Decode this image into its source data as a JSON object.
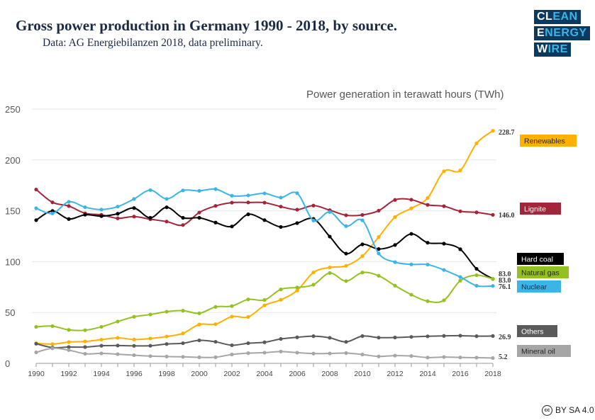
{
  "header": {
    "title": "Gross power production in Germany 1990 - 2018, by source.",
    "subtitle": "Data: AG Energiebilanzen 2018, data preliminary."
  },
  "logo": {
    "line1a": "CL",
    "line1b": "EAN",
    "line2a": "E",
    "line2b": "NERGY",
    "line3a": "W",
    "line3b": "IRE"
  },
  "license": {
    "icon": "cc",
    "text": "BY SA 4.0"
  },
  "chart_data": {
    "type": "line",
    "title": "Gross power production in Germany 1990 - 2018, by source.",
    "ylabel": "Power generation in terawatt hours (TWh)",
    "xlabel": "",
    "ylim": [
      0,
      250
    ],
    "yticks": [
      0,
      50,
      100,
      150,
      200,
      250
    ],
    "xticks": [
      1990,
      1992,
      1994,
      1996,
      1998,
      2000,
      2002,
      2004,
      2006,
      2008,
      2010,
      2012,
      2014,
      2016,
      2018
    ],
    "grid": true,
    "legend": "right",
    "x": [
      1990,
      1991,
      1992,
      1993,
      1994,
      1995,
      1996,
      1997,
      1998,
      1999,
      2000,
      2001,
      2002,
      2003,
      2004,
      2005,
      2006,
      2007,
      2008,
      2009,
      2010,
      2011,
      2012,
      2013,
      2014,
      2015,
      2016,
      2017,
      2018
    ],
    "series": [
      {
        "name": "Renewables",
        "color": "#FFB000",
        "text_color": "#222",
        "end_label": "228.7",
        "values": [
          19.7,
          18.9,
          20.9,
          21.5,
          23.3,
          25.1,
          23.4,
          24.4,
          26.4,
          29.5,
          38.2,
          38.5,
          46.0,
          45.6,
          57.0,
          62.5,
          71.6,
          89.4,
          94.3,
          95.9,
          105.4,
          124.2,
          143.8,
          152.4,
          162.5,
          188.8,
          189.7,
          216.3,
          228.7
        ]
      },
      {
        "name": "Lignite",
        "color": "#A3253A",
        "text_color": "#fff",
        "end_label": "146.0",
        "values": [
          170.9,
          158.3,
          154.7,
          147.5,
          146.1,
          142.6,
          144.3,
          141.7,
          139.4,
          136.0,
          148.3,
          154.8,
          158.0,
          158.2,
          158.0,
          154.1,
          151.1,
          155.1,
          150.6,
          145.6,
          145.9,
          150.1,
          160.7,
          160.9,
          155.8,
          154.5,
          149.5,
          148.4,
          146.0
        ]
      },
      {
        "name": "Hard coal",
        "color": "#000000",
        "text_color": "#fff",
        "end_label": "83.0",
        "values": [
          140.8,
          149.8,
          141.9,
          146.1,
          144.7,
          147.1,
          152.7,
          143.1,
          153.4,
          143.1,
          143.1,
          138.4,
          134.6,
          146.5,
          140.8,
          134.1,
          137.9,
          142.0,
          124.6,
          107.9,
          117.0,
          112.4,
          116.4,
          127.3,
          118.6,
          117.7,
          112.2,
          92.9,
          83.0
        ]
      },
      {
        "name": "Natural gas",
        "color": "#94C11F",
        "text_color": "#222",
        "end_label": "83.0",
        "values": [
          35.9,
          36.6,
          32.9,
          32.6,
          35.9,
          41.1,
          45.8,
          48.0,
          50.8,
          51.8,
          49.2,
          55.5,
          56.3,
          62.9,
          62.3,
          72.7,
          74.6,
          77.3,
          88.8,
          80.9,
          89.3,
          86.1,
          76.4,
          67.5,
          61.1,
          62.0,
          81.3,
          86.7,
          83.0
        ]
      },
      {
        "name": "Nuclear",
        "color": "#3BB5E8",
        "text_color": "#1a2a44",
        "end_label": "76.1",
        "values": [
          152.5,
          147.4,
          158.8,
          153.5,
          151.2,
          154.1,
          161.6,
          170.3,
          161.7,
          170.0,
          169.6,
          171.3,
          164.8,
          165.1,
          167.1,
          163.0,
          167.3,
          140.5,
          148.8,
          134.9,
          140.6,
          108.0,
          99.5,
          97.3,
          97.1,
          91.8,
          84.9,
          76.3,
          76.1
        ]
      },
      {
        "name": "Others",
        "color": "#5A5A5A",
        "text_color": "#fff",
        "end_label": "26.9",
        "values": [
          19.3,
          15.5,
          16.0,
          16.0,
          17.3,
          17.5,
          17.2,
          17.3,
          19.0,
          19.8,
          22.6,
          21.2,
          17.8,
          19.8,
          20.7,
          24.0,
          25.6,
          26.7,
          25.1,
          21.1,
          26.8,
          25.3,
          25.4,
          26.0,
          26.6,
          27.0,
          27.2,
          26.7,
          26.9
        ]
      },
      {
        "name": "Mineral oil",
        "color": "#A6A6A6",
        "text_color": "#222",
        "end_label": "5.2",
        "values": [
          10.8,
          14.8,
          13.0,
          9.4,
          9.8,
          9.0,
          8.0,
          7.1,
          6.7,
          6.4,
          5.9,
          6.0,
          8.7,
          10.0,
          10.5,
          11.6,
          10.5,
          9.6,
          9.7,
          10.1,
          8.7,
          6.8,
          7.6,
          7.2,
          5.7,
          6.2,
          5.8,
          5.6,
          5.2
        ]
      }
    ]
  }
}
